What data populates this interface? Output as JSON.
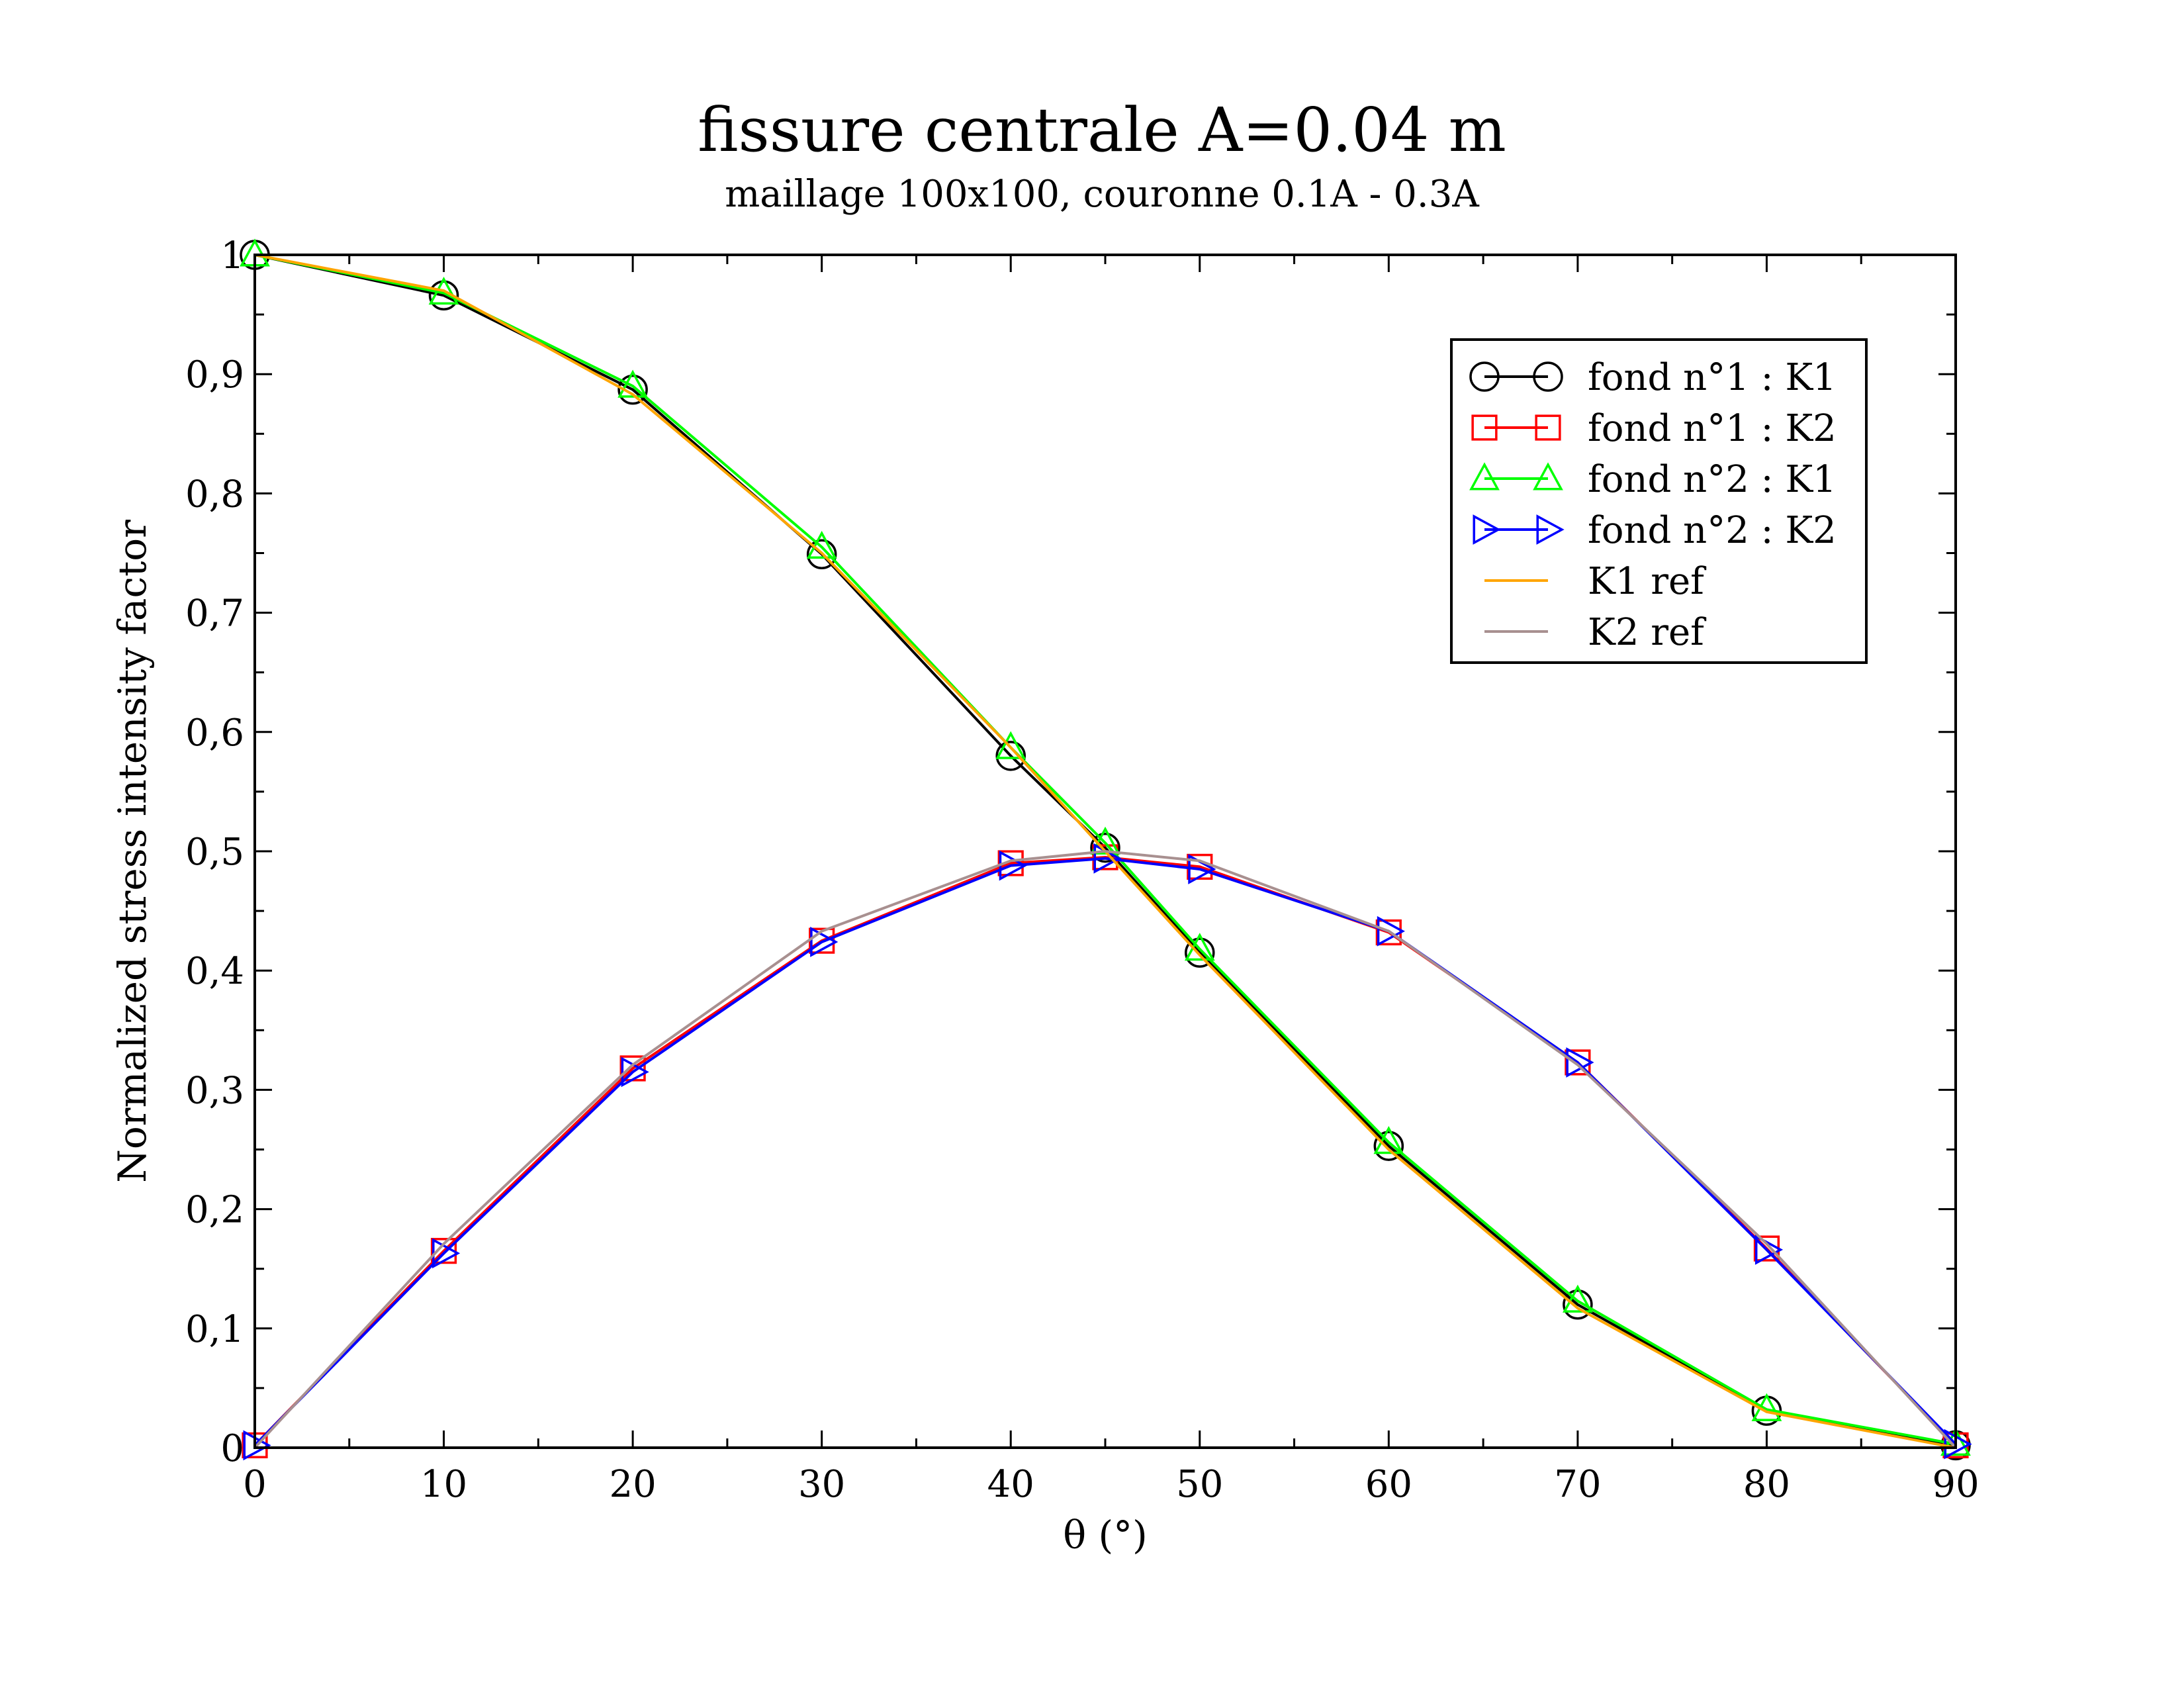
{
  "chart_data": {
    "type": "line",
    "title": "fissure centrale A=0.04 m",
    "subtitle": "maillage 100x100, couronne 0.1A - 0.3A",
    "xlabel": "θ (°)",
    "ylabel": "Normalized stress intensity factor",
    "xlim": [
      0,
      90
    ],
    "ylim": [
      0,
      1
    ],
    "x_ticks": [
      0,
      10,
      20,
      30,
      40,
      50,
      60,
      70,
      80,
      90
    ],
    "x_tick_labels": [
      "0",
      "10",
      "20",
      "30",
      "40",
      "50",
      "60",
      "70",
      "80",
      "90"
    ],
    "y_ticks": [
      0,
      0.1,
      0.2,
      0.3,
      0.4,
      0.5,
      0.6,
      0.7,
      0.8,
      0.9,
      1
    ],
    "y_tick_labels": [
      "0",
      "0,1",
      "0,2",
      "0,3",
      "0,4",
      "0,5",
      "0,6",
      "0,7",
      "0,8",
      "0,9",
      "1"
    ],
    "grid": false,
    "legend_position": "top-right",
    "x": [
      0,
      10,
      20,
      30,
      40,
      45,
      50,
      60,
      70,
      80,
      90
    ],
    "series": [
      {
        "name": "fond n°1 : K1",
        "color": "#000000",
        "marker": "circle",
        "values": [
          1.0,
          0.966,
          0.887,
          0.749,
          0.58,
          0.503,
          0.415,
          0.253,
          0.12,
          0.031,
          0.002
        ]
      },
      {
        "name": "fond n°1 : K2",
        "color": "#ff0000",
        "marker": "square",
        "values": [
          0.002,
          0.165,
          0.318,
          0.425,
          0.49,
          0.495,
          0.487,
          0.432,
          0.323,
          0.167,
          0.002
        ]
      },
      {
        "name": "fond n°2 : K1",
        "color": "#00ff00",
        "marker": "triangle-up",
        "values": [
          1.0,
          0.968,
          0.89,
          0.755,
          0.587,
          0.507,
          0.418,
          0.256,
          0.123,
          0.032,
          0.003
        ]
      },
      {
        "name": "fond n°2 : K2",
        "color": "#0000ff",
        "marker": "triangle-right",
        "values": [
          0.002,
          0.163,
          0.315,
          0.424,
          0.488,
          0.494,
          0.485,
          0.433,
          0.323,
          0.166,
          0.003
        ]
      },
      {
        "name": "K1 ref",
        "color": "#ffa500",
        "marker": "none",
        "values": [
          1.0,
          0.97,
          0.883,
          0.75,
          0.587,
          0.5,
          0.413,
          0.25,
          0.117,
          0.03,
          0.0
        ]
      },
      {
        "name": "K2 ref",
        "color": "#a89090",
        "marker": "none",
        "values": [
          0.0,
          0.171,
          0.321,
          0.433,
          0.492,
          0.5,
          0.492,
          0.433,
          0.321,
          0.171,
          0.0
        ]
      }
    ]
  }
}
